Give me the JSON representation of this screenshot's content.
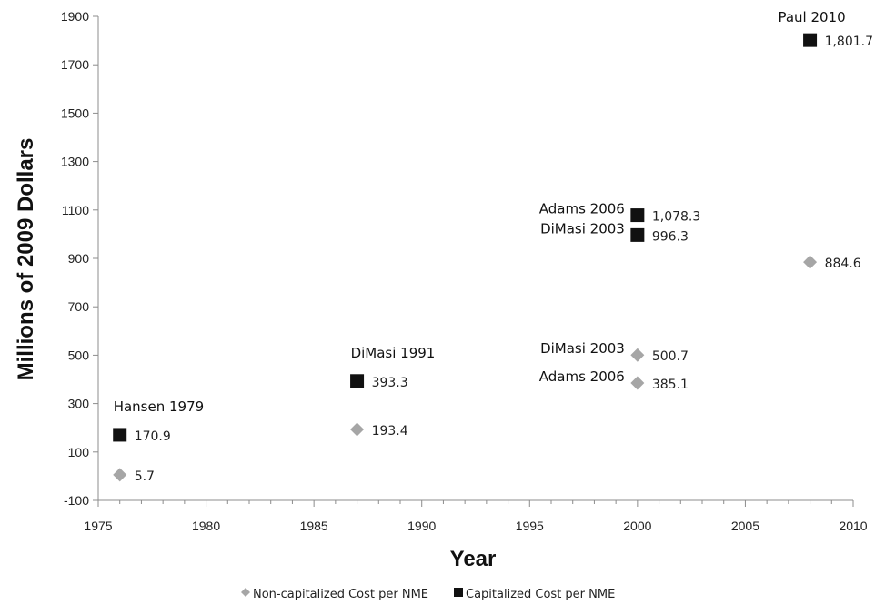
{
  "chart_data": {
    "type": "scatter",
    "xlabel": "Year",
    "ylabel": "Millions of 2009 Dollars",
    "xlim": [
      1975,
      2010
    ],
    "ylim": [
      -100,
      1900
    ],
    "xticks": [
      1975,
      1980,
      1985,
      1990,
      1995,
      2000,
      2005,
      2010
    ],
    "yticks": [
      -100,
      100,
      300,
      500,
      700,
      900,
      1100,
      1300,
      1500,
      1700,
      1900
    ],
    "grid": false,
    "legend_position": "bottom",
    "series": [
      {
        "name": "Non-capitalized Cost per NME",
        "marker": "diamond",
        "color": "#a6a6a6",
        "points": [
          {
            "x": 1976,
            "y": 5.7,
            "label": "5.7"
          },
          {
            "x": 1987,
            "y": 193.4,
            "label": "193.4"
          },
          {
            "x": 2000,
            "y": 500.7,
            "label": "500.7"
          },
          {
            "x": 2000,
            "y": 385.1,
            "label": "385.1"
          },
          {
            "x": 2008,
            "y": 884.6,
            "label": "884.6"
          }
        ]
      },
      {
        "name": "Capitalized Cost per NME",
        "marker": "square",
        "color": "#111111",
        "points": [
          {
            "x": 1976,
            "y": 170.9,
            "label": "170.9"
          },
          {
            "x": 1987,
            "y": 393.3,
            "label": "393.3"
          },
          {
            "x": 2000,
            "y": 1078.3,
            "label": "1,078.3"
          },
          {
            "x": 2000,
            "y": 996.3,
            "label": "996.3"
          },
          {
            "x": 2008,
            "y": 1801.7,
            "label": "1,801.7"
          }
        ]
      }
    ],
    "annotations": [
      {
        "text": "Hansen 1979",
        "x": 1976,
        "y": 170.9
      },
      {
        "text": "DiMasi 1991",
        "x": 1987,
        "y": 393.3
      },
      {
        "text": "Adams 2006",
        "x": 2000,
        "y": 1078.3
      },
      {
        "text": "DiMasi 2003",
        "x": 2000,
        "y": 996.3
      },
      {
        "text": "DiMasi 2003",
        "x": 2000,
        "y": 500.7
      },
      {
        "text": "Adams 2006",
        "x": 2000,
        "y": 385.1
      },
      {
        "text": "Paul 2010",
        "x": 2008,
        "y": 1801.7
      }
    ]
  }
}
